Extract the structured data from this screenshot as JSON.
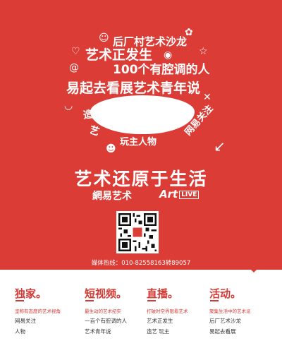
{
  "cloud_words": {
    "line1": "后厂村艺术沙龙",
    "line2": "艺术正发生",
    "line3": "100个有腔调的人",
    "line4": "易起去看展艺术青年说",
    "left1": "造",
    "left2": "艺",
    "bottom": "玩主人物",
    "right": "网易关注"
  },
  "slogan": "艺术还原于生活",
  "brands": {
    "netease": "網易艺术",
    "art": "Art",
    "art_badge": "LIVE"
  },
  "hotline": "媒体热线：010-82558163转89057",
  "columns": [
    {
      "title": "独家",
      "subtitle": "坚称有态度的艺术视角",
      "tags": [
        "网易关注",
        "人物"
      ]
    },
    {
      "title": "短视频",
      "subtitle": "最生动的艺术纪实",
      "tags": [
        "一百个有腔调的人",
        "艺术青年说"
      ]
    },
    {
      "title": "直播",
      "subtitle": "打破时空界限看艺术",
      "tags": [
        "艺术正发生",
        "造艺  玩主"
      ]
    },
    {
      "title": "活动",
      "subtitle": "聚集生活中的艺术派",
      "tags": [
        "后厂艺术沙龙",
        "易起去看展"
      ]
    }
  ],
  "colors": {
    "brand_red": "#db3c36",
    "text_red": "#d33a34"
  }
}
